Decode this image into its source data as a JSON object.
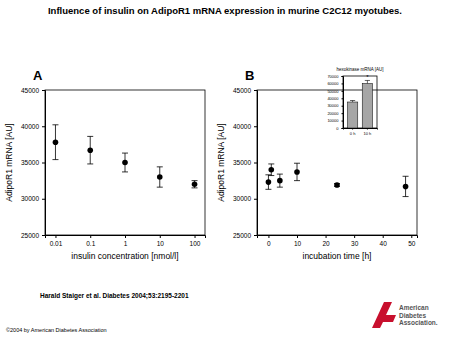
{
  "title": "Influence of insulin on AdipoR1 mRNA expression in murine C2C12 myotubes.",
  "citation": "Harald Staiger et al. Diabetes 2004;53:2195-2201",
  "copyright": "©2004 by American Diabetes Association",
  "logo_lines": [
    "American",
    "Diabetes",
    "Association."
  ],
  "chart_data": [
    {
      "type": "scatter",
      "title": "A",
      "log": "x",
      "x_label": "insulin concentration [nmol/l]",
      "y_label": "AdipoR1 mRNA [AU]",
      "x": [
        0.01,
        0.1,
        1,
        10,
        100
      ],
      "values": [
        37800,
        36700,
        35000,
        33000,
        32000
      ],
      "errors": [
        2400,
        1900,
        1300,
        1400,
        500
      ],
      "xlim": [
        0.005,
        200
      ],
      "xticks": [
        0.01,
        0.1,
        1,
        10,
        100
      ],
      "ylim": [
        25000,
        45000
      ],
      "yticks": [
        25000,
        30000,
        35000,
        40000,
        45000
      ],
      "color": "#000000",
      "marker": "circle"
    },
    {
      "type": "scatter",
      "title": "B",
      "x_label": "incubation time [h]",
      "y_label": "AdipoR1 mRNA [AU]",
      "x": [
        0,
        1,
        4,
        10,
        24,
        48
      ],
      "values": [
        32300,
        34000,
        32500,
        33700,
        31900,
        31700
      ],
      "errors": [
        1000,
        800,
        900,
        1200,
        200,
        1400
      ],
      "xlim": [
        -4,
        52
      ],
      "xticks": [
        0,
        10,
        20,
        30,
        40,
        50
      ],
      "ylim": [
        25000,
        45000
      ],
      "yticks": [
        25000,
        30000,
        35000,
        40000,
        45000
      ],
      "color": "#000000",
      "marker": "circle"
    },
    {
      "type": "bar",
      "title": "hexokinase mRNA [AU]",
      "categories": [
        "0 h",
        "10 h"
      ],
      "values": [
        35000,
        60000
      ],
      "errors": [
        2000,
        4000
      ],
      "ylim": [
        0,
        70000
      ],
      "yticks": [
        0,
        10000,
        20000,
        30000,
        40000,
        50000,
        60000,
        70000
      ],
      "color": "#a6a6a6",
      "annotations": [
        {
          "text": "*",
          "category": "10 h"
        }
      ]
    }
  ]
}
